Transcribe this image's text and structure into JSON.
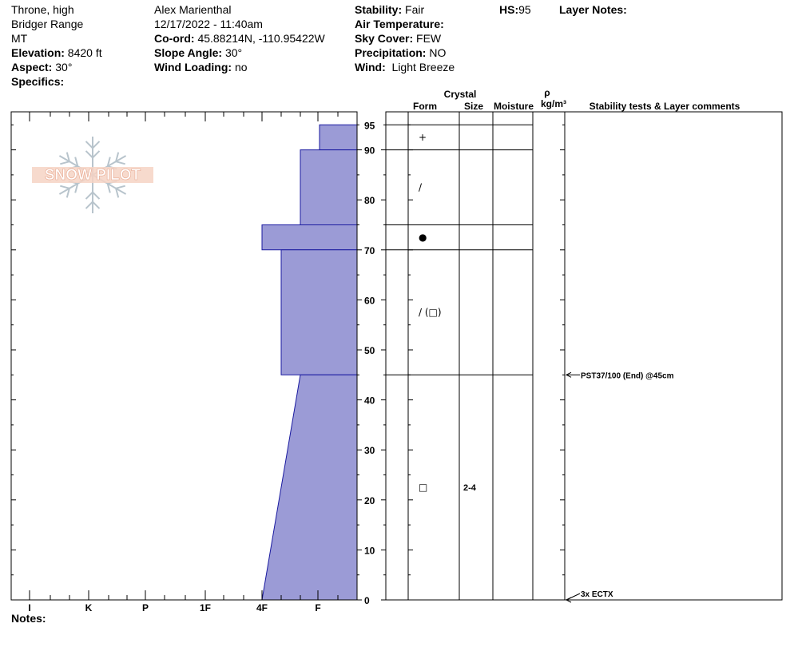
{
  "header": {
    "location": "Throne, high",
    "range": "Bridger Range",
    "state": "MT",
    "elevation_label": "Elevation:",
    "elevation": "8420 ft",
    "aspect_label": "Aspect:",
    "aspect": "30°",
    "specifics_label": "Specifics:",
    "observer": "Alex Marienthal",
    "datetime": "12/17/2022 - 11:40am",
    "coord_label": "Co-ord:",
    "coord": "45.88214N, -110.95422W",
    "slope_label": "Slope Angle:",
    "slope": "30°",
    "wind_loading_label": "Wind Loading:",
    "wind_loading": "no",
    "stability_label": "Stability:",
    "stability": "Fair",
    "air_temp_label": "Air Temperature:",
    "air_temp": "",
    "sky_label": "Sky Cover:",
    "sky": "FEW",
    "precip_label": "Precipitation:",
    "precip": "NO",
    "wind_label": "Wind:",
    "wind": "Light Breeze",
    "hs_label": "HS:",
    "hs": "95",
    "layer_notes_label": "Layer Notes:"
  },
  "logo_text": "SNOW PILOT",
  "notes_label": "Notes:",
  "colors": {
    "hardness_fill": "#9b9bd6",
    "hardness_stroke": "#1a1aa0",
    "logo": "#f2b8a0"
  },
  "chart_data": {
    "type": "bar",
    "y_ticks": [
      0,
      10,
      20,
      30,
      40,
      50,
      60,
      70,
      80,
      90,
      95
    ],
    "ylim": [
      0,
      97.5
    ],
    "hardness_labels": [
      "I",
      "K",
      "P",
      "1F",
      "4F",
      "F"
    ],
    "hardness_profile": [
      {
        "top": 95,
        "bottom": 90,
        "hardness_at_top": "F+",
        "hardness_at_bottom": "F+"
      },
      {
        "top": 90,
        "bottom": 75,
        "hardness_at_top": "4F-F",
        "hardness_at_bottom": "4F-F"
      },
      {
        "top": 75,
        "bottom": 70,
        "hardness_at_top": "4F",
        "hardness_at_bottom": "4F"
      },
      {
        "top": 70,
        "bottom": 45,
        "hardness_at_top": "4F+",
        "hardness_at_bottom": "4F+"
      },
      {
        "top": 45,
        "bottom": 0,
        "hardness_at_top": "4F-F",
        "hardness_at_bottom": "4F"
      }
    ],
    "table_headers": {
      "crystal": "Crystal",
      "form": "Form",
      "size": "Size",
      "moisture": "Moisture",
      "rho": "ρ",
      "density_unit": "kg/m³",
      "comments": "Stability tests & Layer comments"
    },
    "layer_boundaries": [
      95,
      90,
      75,
      70,
      45
    ],
    "forms": [
      {
        "height": 92.5,
        "form": "+"
      },
      {
        "height": 82.5,
        "form": "/"
      },
      {
        "height": 72.5,
        "form": "●"
      },
      {
        "height": 57.5,
        "form": "/ (□)"
      },
      {
        "height": 22.5,
        "form": "□",
        "size": "2-4"
      }
    ],
    "stability_tests": [
      {
        "height": 45,
        "text": "PST37/100 (End) @45cm"
      },
      {
        "height": 0,
        "text": "3x ECTX"
      }
    ]
  }
}
